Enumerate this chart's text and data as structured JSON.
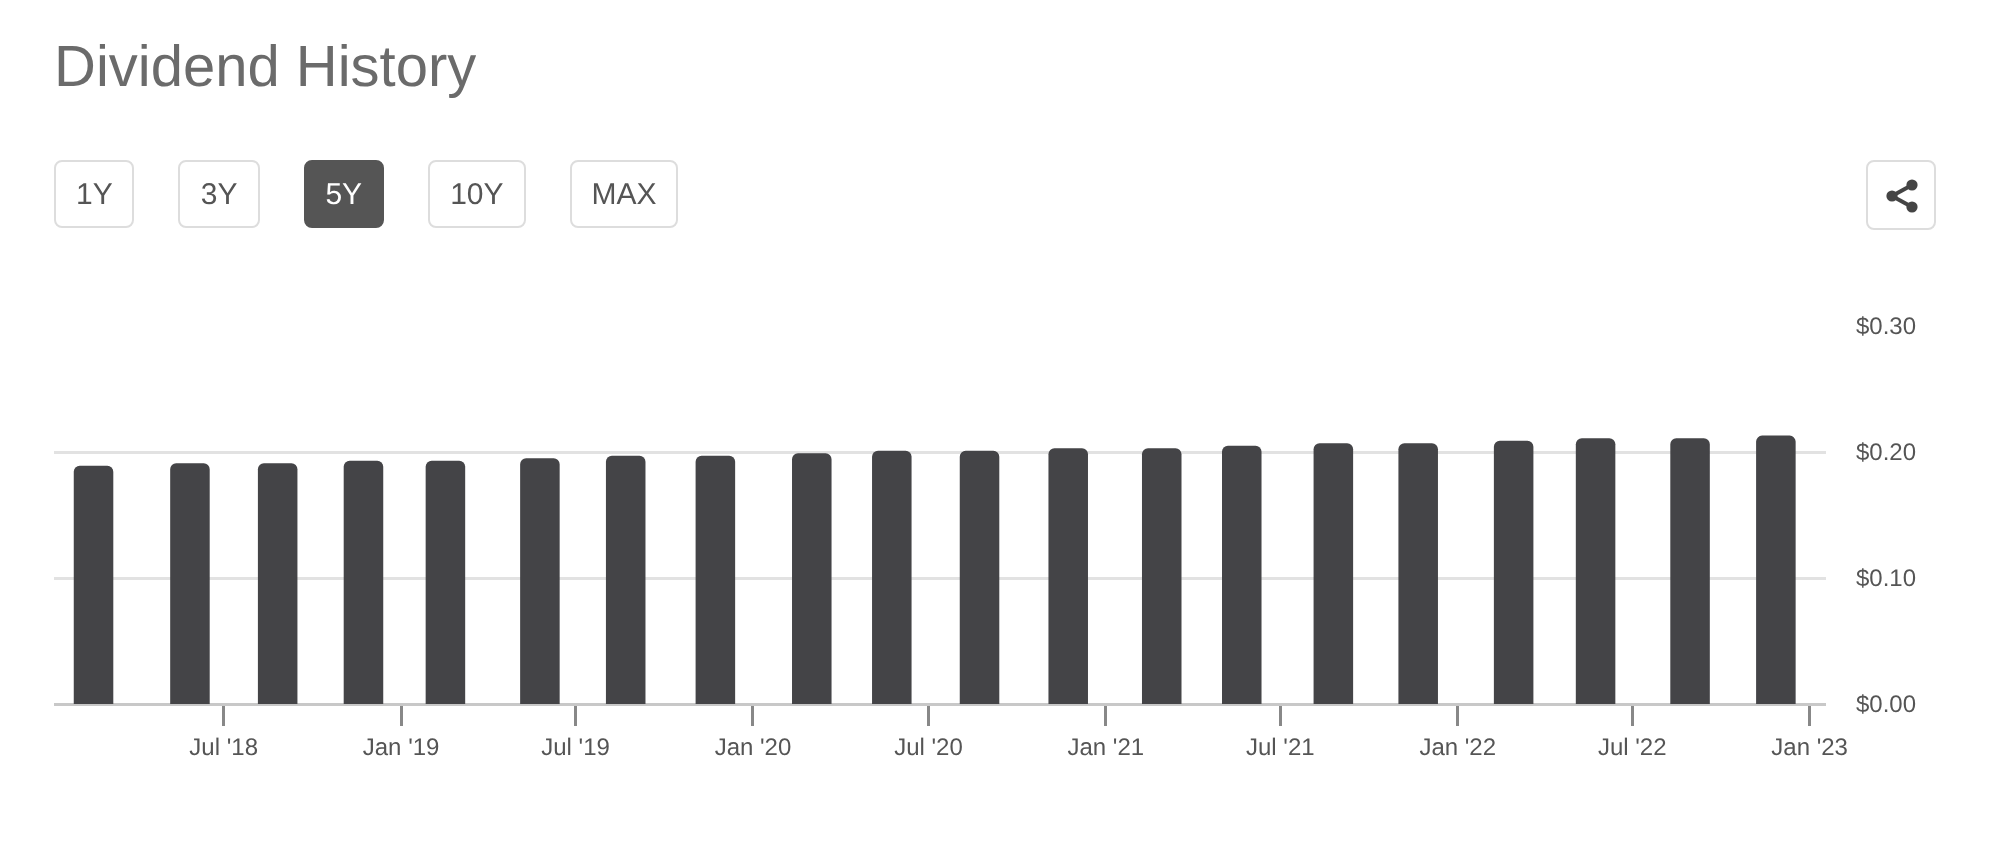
{
  "chart_data": {
    "type": "bar",
    "title": "Dividend History",
    "annotations": [
      "1Y",
      "3Y",
      "5Y",
      "10Y",
      "MAX"
    ],
    "x": [
      "2018-02-16",
      "2018-05-27",
      "2018-08-26",
      "2018-11-23",
      "2019-02-16",
      "2019-05-25",
      "2019-08-22",
      "2019-11-23",
      "2020-03-02",
      "2020-05-24",
      "2020-08-23",
      "2020-11-23",
      "2021-02-28",
      "2021-05-22",
      "2021-08-25",
      "2021-11-21",
      "2022-02-28",
      "2022-05-24",
      "2022-08-30",
      "2022-11-27"
    ],
    "values": [
      0.189,
      0.191,
      0.191,
      0.193,
      0.193,
      0.195,
      0.197,
      0.197,
      0.199,
      0.201,
      0.201,
      0.203,
      0.203,
      0.205,
      0.207,
      0.207,
      0.209,
      0.211,
      0.211,
      0.213
    ],
    "color": "#444447",
    "xlim": [
      "2018-01-06",
      "2023-01-18"
    ],
    "xticks": [
      {
        "value": "2018-07-01",
        "label": "Jul '18"
      },
      {
        "value": "2019-01-01",
        "label": "Jan '19"
      },
      {
        "value": "2019-07-01",
        "label": "Jul '19"
      },
      {
        "value": "2020-01-01",
        "label": "Jan '20"
      },
      {
        "value": "2020-07-01",
        "label": "Jul '20"
      },
      {
        "value": "2021-01-01",
        "label": "Jan '21"
      },
      {
        "value": "2021-07-01",
        "label": "Jul '21"
      },
      {
        "value": "2022-01-01",
        "label": "Jan '22"
      },
      {
        "value": "2022-07-01",
        "label": "Jul '22"
      },
      {
        "value": "2023-01-01",
        "label": "Jan '23"
      }
    ],
    "ylim": [
      0,
      0.3
    ],
    "yticks": [
      {
        "value": 0,
        "label": "$0.00"
      },
      {
        "value": 0.1,
        "label": "$0.10"
      },
      {
        "value": 0.2,
        "label": "$0.20"
      },
      {
        "value": 0.3,
        "label": "$0.30"
      }
    ],
    "grid": "y",
    "legend": false
  }
}
